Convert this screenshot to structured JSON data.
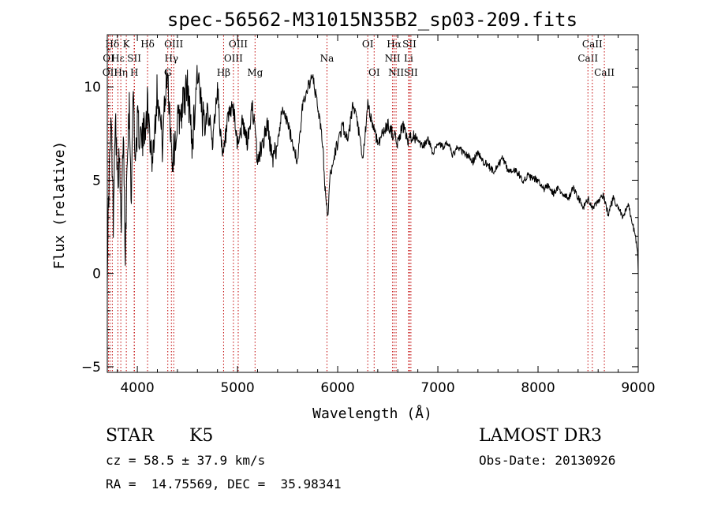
{
  "chart_data": {
    "type": "line",
    "title": "spec-56562-M31015N35B2_sp03-209.fits",
    "xlabel": "Wavelength (Å)",
    "ylabel": "Flux (relative)",
    "xlim": [
      3700,
      9000
    ],
    "ylim": [
      -5.3,
      12.8
    ],
    "xticks": [
      4000,
      5000,
      6000,
      7000,
      8000,
      9000
    ],
    "yticks": [
      -5,
      0,
      5,
      10
    ],
    "grid": false,
    "series": [
      {
        "name": "flux",
        "x": [
          3700,
          3720,
          3740,
          3760,
          3780,
          3800,
          3820,
          3840,
          3860,
          3880,
          3900,
          3920,
          3940,
          3960,
          3980,
          4000,
          4050,
          4100,
          4150,
          4200,
          4250,
          4300,
          4350,
          4400,
          4450,
          4500,
          4550,
          4600,
          4650,
          4700,
          4750,
          4800,
          4850,
          4900,
          4950,
          5000,
          5050,
          5100,
          5150,
          5200,
          5250,
          5300,
          5350,
          5400,
          5450,
          5500,
          5550,
          5600,
          5650,
          5700,
          5750,
          5800,
          5850,
          5880,
          5900,
          5920,
          5950,
          6000,
          6050,
          6100,
          6150,
          6200,
          6250,
          6300,
          6350,
          6400,
          6450,
          6500,
          6550,
          6600,
          6650,
          6700,
          6750,
          6800,
          6850,
          6900,
          6950,
          7000,
          7050,
          7100,
          7150,
          7200,
          7250,
          7300,
          7350,
          7400,
          7450,
          7500,
          7550,
          7600,
          7650,
          7700,
          7750,
          7800,
          7850,
          7900,
          7950,
          8000,
          8050,
          8100,
          8150,
          8200,
          8250,
          8300,
          8350,
          8400,
          8450,
          8500,
          8550,
          8600,
          8650,
          8700,
          8750,
          8800,
          8850,
          8900,
          8950,
          8970,
          8990,
          9000
        ],
        "y": [
          0.5,
          5.5,
          8,
          3,
          9,
          5,
          6,
          2,
          8,
          1,
          7,
          9,
          4,
          10,
          6,
          8,
          7,
          9,
          6,
          10,
          7,
          11,
          6,
          8,
          9,
          10,
          7,
          11,
          8,
          9,
          7,
          10,
          6,
          8,
          9,
          7,
          8,
          7,
          9,
          6,
          7,
          8,
          6,
          7,
          9,
          8,
          7,
          6,
          9,
          10,
          10.5,
          9,
          7,
          4,
          3,
          5,
          6,
          7,
          8,
          7,
          9,
          8,
          6,
          9,
          8,
          7,
          7.5,
          8,
          7.5,
          7,
          8,
          7,
          7.5,
          7,
          6.8,
          7.2,
          6.5,
          7,
          6.8,
          7,
          6.3,
          6.8,
          6.5,
          6.3,
          6,
          6.5,
          6,
          5.8,
          5.5,
          5.8,
          6.2,
          5.5,
          5.6,
          5.4,
          5,
          5.2,
          5.1,
          5,
          4.5,
          4.7,
          4.3,
          4.5,
          4.3,
          4,
          4.6,
          4.1,
          3.5,
          4,
          3.5,
          3.8,
          4.2,
          3.2,
          4,
          3.5,
          3,
          3.7,
          2.5,
          2,
          1.5,
          0
        ]
      }
    ],
    "lines": [
      {
        "name": "Hδ",
        "wave": 3750,
        "row": 0
      },
      {
        "name": "OI",
        "wave": 3712,
        "row": 1
      },
      {
        "name": "OII",
        "wave": 3727,
        "row": 2
      },
      {
        "name": "Hε",
        "wave": 3806,
        "row": 1
      },
      {
        "name": "Hη",
        "wave": 3835,
        "row": 2
      },
      {
        "name": "K",
        "wave": 3890,
        "row": 0
      },
      {
        "name": "SII",
        "wave": 3969,
        "row": 1
      },
      {
        "name": "H",
        "wave": 3970,
        "row": 2
      },
      {
        "name": "Hδ",
        "wave": 4102,
        "row": 0
      },
      {
        "name": "OIII",
        "wave": 4363,
        "row": 0
      },
      {
        "name": "Hγ",
        "wave": 4340,
        "row": 1
      },
      {
        "name": "G",
        "wave": 4304,
        "row": 2
      },
      {
        "name": "Hβ",
        "wave": 4861,
        "row": 2
      },
      {
        "name": "OIII",
        "wave": 4959,
        "row": 1
      },
      {
        "name": "OIII",
        "wave": 5007,
        "row": 0
      },
      {
        "name": "Mg",
        "wave": 5175,
        "row": 2
      },
      {
        "name": "Na",
        "wave": 5893,
        "row": 1
      },
      {
        "name": "OI",
        "wave": 6300,
        "row": 0
      },
      {
        "name": "OI",
        "wave": 6364,
        "row": 2
      },
      {
        "name": "Hα",
        "wave": 6563,
        "row": 0
      },
      {
        "name": "NII",
        "wave": 6548,
        "row": 1
      },
      {
        "name": "NII",
        "wave": 6583,
        "row": 2
      },
      {
        "name": "SII",
        "wave": 6716,
        "row": 0
      },
      {
        "name": "Li",
        "wave": 6708,
        "row": 1
      },
      {
        "name": "SII",
        "wave": 6731,
        "row": 2
      },
      {
        "name": "CaII",
        "wave": 8498,
        "row": 1
      },
      {
        "name": "CaII",
        "wave": 8542,
        "row": 0
      },
      {
        "name": "CaII",
        "wave": 8662,
        "row": 2
      }
    ]
  },
  "info": {
    "class": "STAR",
    "subclass": "K5",
    "survey": "LAMOST DR3",
    "cz": "cz = 58.5 ± 37.9 km/s",
    "obs_date": "Obs-Date: 20130926",
    "coords": "RA =  14.75569, DEC =  35.98341"
  }
}
